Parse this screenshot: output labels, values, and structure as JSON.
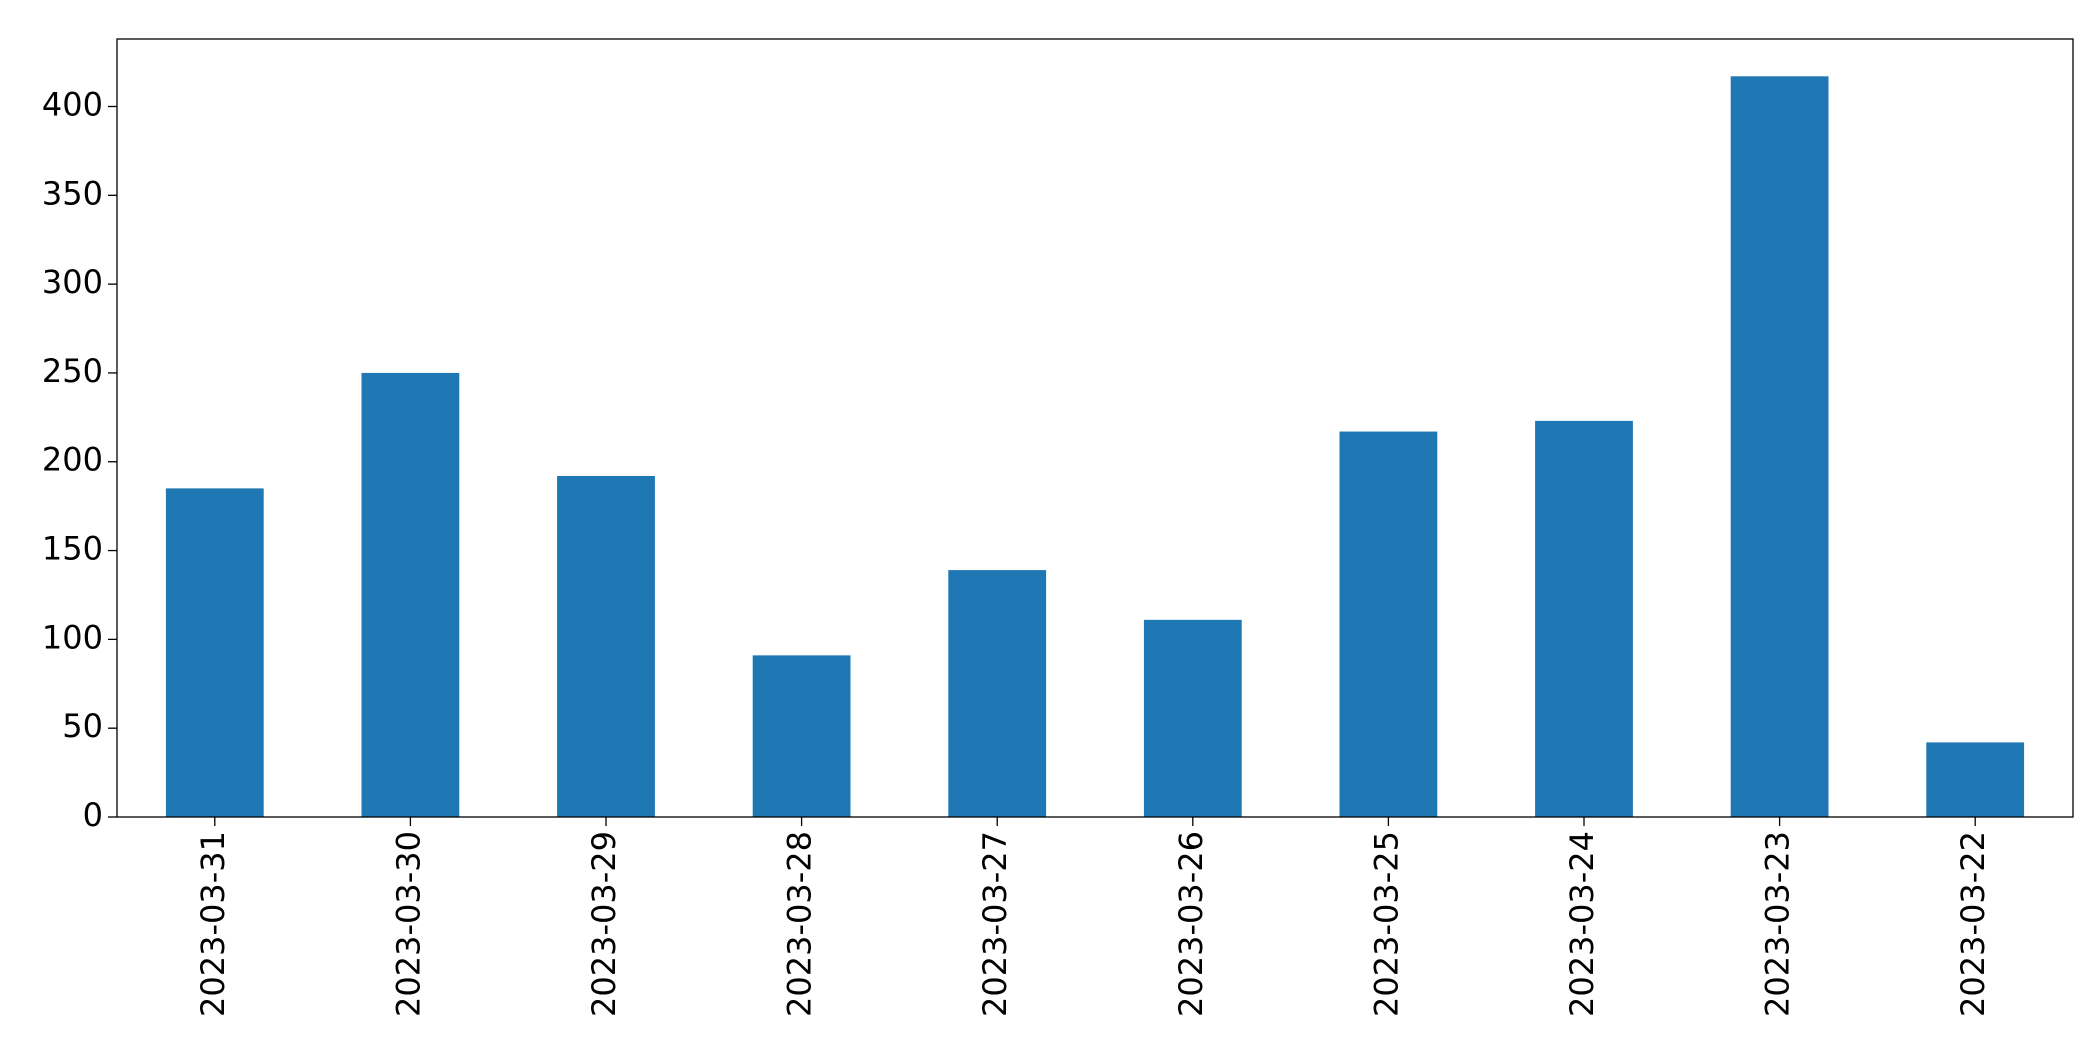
{
  "chart_data": {
    "type": "bar",
    "categories": [
      "2023-03-31",
      "2023-03-30",
      "2023-03-29",
      "2023-03-28",
      "2023-03-27",
      "2023-03-26",
      "2023-03-25",
      "2023-03-24",
      "2023-03-23",
      "2023-03-22"
    ],
    "values": [
      185,
      250,
      192,
      91,
      139,
      111,
      217,
      223,
      417,
      42
    ],
    "color": "#1f77b4",
    "ylim": [
      0,
      438
    ],
    "yticks": [
      0,
      50,
      100,
      150,
      200,
      250,
      300,
      350,
      400
    ],
    "grid": false
  }
}
